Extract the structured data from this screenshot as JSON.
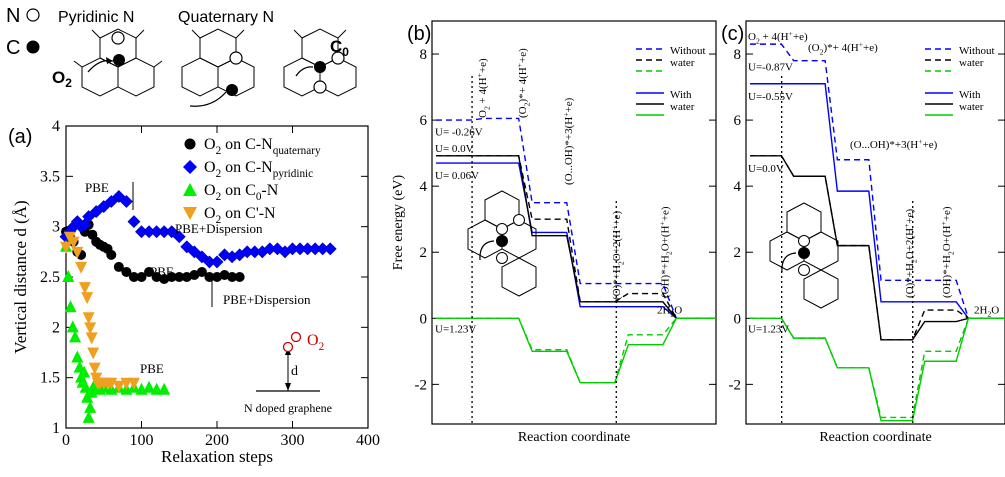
{
  "schematic": {
    "legend_n_symbol": "N",
    "legend_c_symbol": "C",
    "pyridinic_title": "Pyridinic N",
    "quaternary_title": "Quaternary N",
    "o2_label": "O",
    "o2_sub": "2",
    "c0_label": "C",
    "c0_sub": "0"
  },
  "chart_data": [
    {
      "panel": "(a)",
      "type": "scatter",
      "xlabel": "Relaxation steps",
      "ylabel": "Vertical distance d (Å)",
      "xlim": [
        0,
        400
      ],
      "ylim": [
        1,
        4
      ],
      "xticks": [
        "0",
        "100",
        "200",
        "300",
        "400"
      ],
      "yticks": [
        "1",
        "1.5",
        "2",
        "2.5",
        "3",
        "3.5",
        "4"
      ],
      "legend_position": "top-right",
      "series": [
        {
          "name": "O2 on C-N_quaternary",
          "label_main": "O",
          "label_sub1": "2",
          "label_rest": " on C-N",
          "label_sub2": "quaternary",
          "marker": "circle",
          "color": "#000000",
          "x": [
            0,
            5,
            10,
            15,
            20,
            25,
            30,
            35,
            40,
            45,
            50,
            55,
            60,
            70,
            80,
            90,
            100,
            110,
            120,
            130,
            140,
            150,
            160,
            170,
            180,
            190,
            200,
            210,
            220,
            230
          ],
          "y": [
            2.95,
            2.9,
            2.85,
            2.75,
            2.72,
            2.95,
            3.02,
            2.92,
            2.85,
            2.82,
            2.8,
            2.78,
            2.72,
            2.6,
            2.55,
            2.5,
            2.5,
            2.55,
            2.5,
            2.48,
            2.5,
            2.5,
            2.5,
            2.52,
            2.55,
            2.5,
            2.5,
            2.52,
            2.5,
            2.5
          ]
        },
        {
          "name": "O2 on C-N_pyridinic",
          "label_main": "O",
          "label_sub1": "2",
          "label_rest": " on C-N",
          "label_sub2": "pyridinic",
          "marker": "diamond",
          "color": "#0000ff",
          "x": [
            0,
            5,
            10,
            15,
            20,
            25,
            30,
            40,
            50,
            60,
            70,
            80,
            90,
            100,
            110,
            120,
            130,
            140,
            150,
            160,
            170,
            180,
            190,
            200,
            210,
            220,
            230,
            240,
            250,
            260,
            270,
            280,
            290,
            300,
            310,
            320,
            330,
            340,
            350
          ],
          "y": [
            2.9,
            2.95,
            3.0,
            3.05,
            3.0,
            3.02,
            3.1,
            3.15,
            3.2,
            3.25,
            3.3,
            3.25,
            3.05,
            2.95,
            2.95,
            2.95,
            2.95,
            2.95,
            2.9,
            2.8,
            2.75,
            2.7,
            2.65,
            2.65,
            2.72,
            2.7,
            2.72,
            2.75,
            2.75,
            2.75,
            2.78,
            2.78,
            2.75,
            2.78,
            2.78,
            2.78,
            2.78,
            2.78,
            2.78
          ]
        },
        {
          "name": "O2 on C0-N",
          "label_main": "O",
          "label_sub1": "2",
          "label_rest": " on C",
          "label_sub2": "0",
          "label_tail": "-N",
          "marker": "triangle-up",
          "color": "#00ee00",
          "x": [
            0,
            3,
            6,
            9,
            12,
            15,
            18,
            20,
            22,
            24,
            26,
            28,
            30,
            32,
            34,
            36,
            40,
            45,
            50,
            60,
            70,
            80,
            90,
            100,
            110,
            120,
            130
          ],
          "y": [
            2.8,
            2.5,
            2.2,
            2.0,
            1.9,
            1.7,
            1.6,
            1.5,
            1.45,
            1.55,
            1.4,
            1.3,
            1.1,
            1.2,
            1.35,
            1.4,
            1.4,
            1.38,
            1.4,
            1.38,
            1.4,
            1.38,
            1.4,
            1.38,
            1.4,
            1.38,
            1.38
          ]
        },
        {
          "name": "O2 on C'-N",
          "label_main": "O",
          "label_sub1": "2",
          "label_rest": " on C'-N",
          "label_sub2": "",
          "marker": "triangle-down",
          "color": "#f0a020",
          "x": [
            0,
            5,
            10,
            15,
            20,
            25,
            28,
            30,
            32,
            34,
            36,
            38,
            40,
            42,
            45,
            50,
            55,
            60,
            70,
            80,
            90
          ],
          "y": [
            2.8,
            2.9,
            2.85,
            2.75,
            2.6,
            2.4,
            2.3,
            2.1,
            2.0,
            1.9,
            1.75,
            1.6,
            1.5,
            1.45,
            1.45,
            1.45,
            1.45,
            1.45,
            1.42,
            1.45,
            1.45
          ]
        }
      ],
      "annotations": {
        "pbe_1": "PBE",
        "pbe_dispersion_1": "PBE+Dispersion",
        "pbe_2": "PBE",
        "pbe_dispersion_2": "PBE+Dispersion",
        "pbe_3": "PBE",
        "inset_o2": "O",
        "inset_o2_sub": "2",
        "inset_d": "d",
        "inset_caption": "N doped graphene"
      }
    },
    {
      "panel": "(b)",
      "type": "line",
      "xlabel": "Reaction coordinate",
      "ylabel": "Free energy (eV)",
      "ylim": [
        -3.2,
        9
      ],
      "yticks": [
        "-2",
        "0",
        "2",
        "4",
        "6",
        "8"
      ],
      "steps": [
        "O2 + 4(H+e)",
        "(O2)* + 4(H+e)",
        "(O...OH)* + 3(H+e)",
        "(O)* + H2O + 2(H+e)",
        "(OH)* + H2O + (H+e)",
        "2H2O"
      ],
      "step_labels_display": [
        "O",
        "(O",
        "(O...OH)*+3(H",
        "(O)*+H",
        "(OH)*+H",
        "2H"
      ],
      "legend_position": "top-right",
      "legend_labels": [
        "Without",
        "water",
        "With",
        "water"
      ],
      "series": [
        {
          "name": "U=-0.26V",
          "color": "#0000ff",
          "style": "dashed",
          "values": [
            6.0,
            6.05,
            3.5,
            1.05,
            1.05,
            0
          ]
        },
        {
          "name": "U=0.0V",
          "color": "#000000",
          "style": "dashed",
          "values": [
            4.92,
            4.92,
            3.0,
            0.5,
            0.75,
            0
          ]
        },
        {
          "name": "U=0.06V",
          "color": "#0000ff",
          "style": "solid",
          "values": [
            4.7,
            4.7,
            2.6,
            0.35,
            0.35,
            0
          ]
        },
        {
          "name": "U=0.0V with water",
          "color": "#000000",
          "style": "solid",
          "values": [
            4.92,
            4.92,
            2.5,
            0.5,
            0.5,
            0
          ]
        },
        {
          "name": "U=1.23V",
          "color": "#00cc00",
          "style": "dashed",
          "values": [
            0,
            0,
            -0.95,
            -1.95,
            -0.5,
            0
          ]
        },
        {
          "name": "U=1.23V with water",
          "color": "#00cc00",
          "style": "solid",
          "values": [
            0,
            0,
            -1.0,
            -1.95,
            -0.8,
            0
          ]
        }
      ],
      "potential_labels": [
        "U= -0.26V",
        "U= 0.0V",
        "U= 0.06V",
        "U=1.23V"
      ]
    },
    {
      "panel": "(c)",
      "type": "line",
      "xlabel": "Reaction coordinate",
      "ylim": [
        -3.2,
        9
      ],
      "yticks": [
        "-2",
        "0",
        "2",
        "4",
        "6",
        "8"
      ],
      "steps": [
        "O2 + 4(H+e)",
        "(O2)* + 4(H+e)",
        "(O...OH)* + 3(H+e)",
        "(O)* + H2O + 2(H+e)",
        "(OH)* + H2O + (H+e)",
        "2H2O"
      ],
      "legend_position": "top-right",
      "legend_labels": [
        "Without",
        "water",
        "With",
        "water"
      ],
      "series": [
        {
          "name": "U=-0.87V",
          "color": "#0000ff",
          "style": "dashed",
          "values": [
            8.3,
            7.8,
            4.8,
            1.15,
            1.15,
            0
          ]
        },
        {
          "name": "U=-0.55V",
          "color": "#0000ff",
          "style": "solid",
          "values": [
            7.1,
            7.1,
            3.85,
            0.5,
            0.5,
            0
          ]
        },
        {
          "name": "U=0.0V",
          "color": "#000000",
          "style": "dashed",
          "values": [
            4.92,
            4.3,
            2.2,
            -0.65,
            0.25,
            0
          ]
        },
        {
          "name": "U=0.0V with water",
          "color": "#000000",
          "style": "solid",
          "values": [
            4.92,
            4.3,
            2.2,
            -0.65,
            -0.1,
            0
          ]
        },
        {
          "name": "U=1.23V",
          "color": "#00cc00",
          "style": "dashed",
          "values": [
            0,
            -0.6,
            -1.5,
            -3.0,
            -1.0,
            0
          ]
        },
        {
          "name": "U=1.23V with water",
          "color": "#00cc00",
          "style": "solid",
          "values": [
            0,
            -0.6,
            -1.5,
            -3.1,
            -1.3,
            0
          ]
        }
      ],
      "potential_labels": [
        "U=-0.87V",
        "U=-0.55V",
        "U=0.0V",
        "U=1.23V"
      ]
    }
  ]
}
